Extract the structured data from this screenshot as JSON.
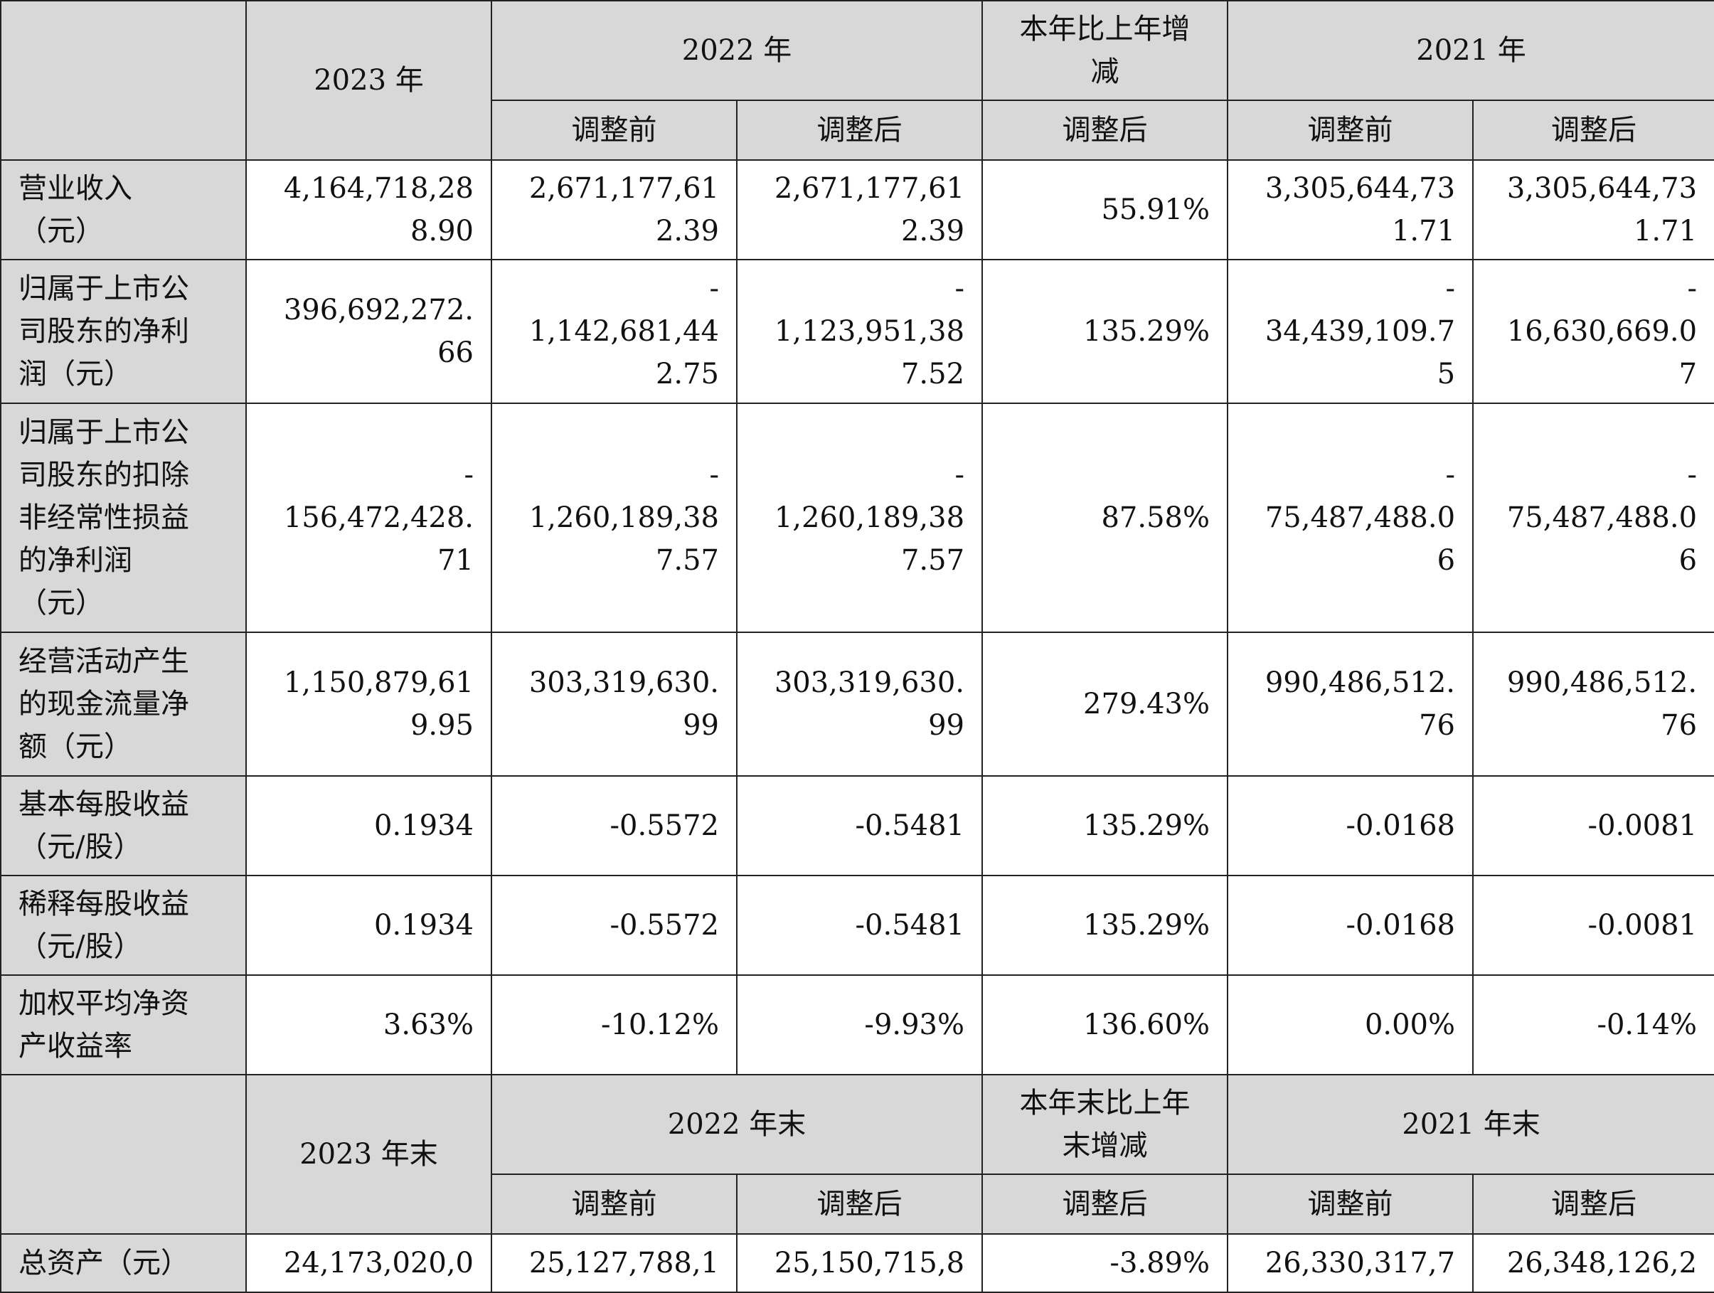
{
  "header_top": {
    "col_2023": "2023 年",
    "col_2022": "2022 年",
    "col_change": "本年比上年增\n减",
    "col_2021": "2021 年",
    "sub_2022_before": "调整前",
    "sub_2022_after": "调整后",
    "sub_change_after": "调整后",
    "sub_2021_before": "调整前",
    "sub_2021_after": "调整后"
  },
  "rows": [
    {
      "label": "营业收入\n（元）",
      "v2023": "4,164,718,28\n8.90",
      "v2022_before": "2,671,177,61\n2.39",
      "v2022_after": "2,671,177,61\n2.39",
      "change": "55.91%",
      "v2021_before": "3,305,644,73\n1.71",
      "v2021_after": "3,305,644,73\n1.71"
    },
    {
      "label": "归属于上市公\n司股东的净利\n润（元）",
      "v2023": "396,692,272.\n66",
      "v2022_before": "-\n1,142,681,44\n2.75",
      "v2022_after": "-\n1,123,951,38\n7.52",
      "change": "135.29%",
      "v2021_before": "-\n34,439,109.7\n5",
      "v2021_after": "-\n16,630,669.0\n7"
    },
    {
      "label": "归属于上市公\n司股东的扣除\n非经常性损益\n的净利润\n（元）",
      "v2023": "-\n156,472,428.\n71",
      "v2022_before": "-\n1,260,189,38\n7.57",
      "v2022_after": "-\n1,260,189,38\n7.57",
      "change": "87.58%",
      "v2021_before": "-\n75,487,488.0\n6",
      "v2021_after": "-\n75,487,488.0\n6"
    },
    {
      "label": "经营活动产生\n的现金流量净\n额（元）",
      "v2023": "1,150,879,61\n9.95",
      "v2022_before": "303,319,630.\n99",
      "v2022_after": "303,319,630.\n99",
      "change": "279.43%",
      "v2021_before": "990,486,512.\n76",
      "v2021_after": "990,486,512.\n76"
    },
    {
      "label": "基本每股收益\n（元/股）",
      "v2023": "0.1934",
      "v2022_before": "-0.5572",
      "v2022_after": "-0.5481",
      "change": "135.29%",
      "v2021_before": "-0.0168",
      "v2021_after": "-0.0081"
    },
    {
      "label": "稀释每股收益\n（元/股）",
      "v2023": "0.1934",
      "v2022_before": "-0.5572",
      "v2022_after": "-0.5481",
      "change": "135.29%",
      "v2021_before": "-0.0168",
      "v2021_after": "-0.0081"
    },
    {
      "label": "加权平均净资\n产收益率",
      "v2023": "3.63%",
      "v2022_before": "-10.12%",
      "v2022_after": "-9.93%",
      "change": "136.60%",
      "v2021_before": "0.00%",
      "v2021_after": "-0.14%"
    }
  ],
  "header_bottom": {
    "col_2023": "2023 年末",
    "col_2022": "2022 年末",
    "col_change": "本年末比上年\n末增减",
    "col_2021": "2021 年末",
    "sub_2022_before": "调整前",
    "sub_2022_after": "调整后",
    "sub_change_after": "调整后",
    "sub_2021_before": "调整前",
    "sub_2021_after": "调整后"
  },
  "bottom_rows": [
    {
      "label": "总资产（元）",
      "v2023": "24,173,020,0",
      "v2022_before": "25,127,788,1",
      "v2022_after": "25,150,715,8",
      "change": "-3.89%",
      "v2021_before": "26,330,317,7",
      "v2021_after": "26,348,126,2"
    }
  ]
}
